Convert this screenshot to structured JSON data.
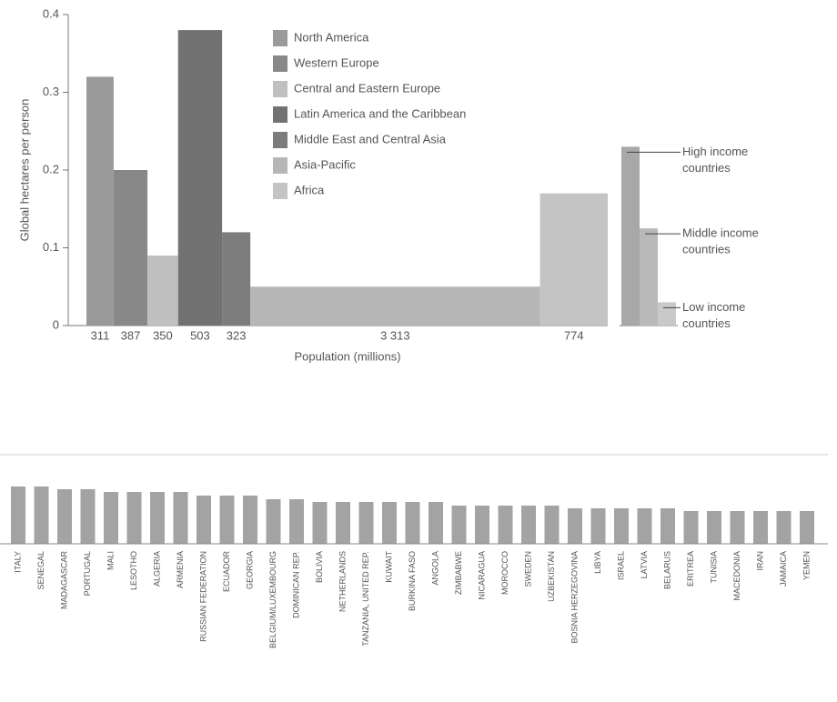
{
  "chart_data": [
    {
      "type": "bar",
      "ylabel": "Global hectares per person",
      "xlabel": "Population (millions)",
      "ylim": [
        0,
        0.4
      ],
      "yticks": [
        0,
        0.1,
        0.2,
        0.3,
        0.4
      ],
      "series": [
        {
          "name": "North America",
          "color": "#9a9a9a"
        },
        {
          "name": "Western Europe",
          "color": "#888888"
        },
        {
          "name": "Central and Eastern Europe",
          "color": "#c0c0c0"
        },
        {
          "name": "Latin America and the Caribbean",
          "color": "#727272"
        },
        {
          "name": "Middle East and Central Asia",
          "color": "#7c7c7c"
        },
        {
          "name": "Asia-Pacific",
          "color": "#b6b6b6"
        },
        {
          "name": "Africa",
          "color": "#c4c4c4"
        }
      ],
      "values": [
        0.32,
        0.2,
        0.09,
        0.38,
        0.12,
        0.05,
        0.17
      ],
      "widths": [
        311,
        387,
        350,
        503,
        323,
        3313,
        774
      ],
      "width_labels": [
        "311",
        "387",
        "350",
        "503",
        "323",
        "3 313",
        "774"
      ],
      "income_groups": {
        "labels": [
          [
            "High income",
            "countries"
          ],
          [
            "Middle income",
            "countries"
          ],
          [
            "Low income",
            "countries"
          ]
        ],
        "values": [
          0.23,
          0.125,
          0.03
        ],
        "colors": [
          "#a8a8a8",
          "#b9b9b9",
          "#c9c9c9"
        ]
      }
    },
    {
      "type": "bar",
      "ylim": [
        0,
        70
      ],
      "color": "#a3a3a3",
      "categories": [
        "ITALY",
        "SENEGAL",
        "MADAGASCAR",
        "PORTUGAL",
        "MALI",
        "LESOTHO",
        "ALGERIA",
        "ARMENIA",
        "RUSSIAN FEDERATION",
        "ECUADOR",
        "GEORGIA",
        "BELGIUM/LUXEMBOURG",
        "DOMINICAN REP.",
        "BOLIVIA",
        "NETHERLANDS",
        "TANZANIA, UNITED REP.",
        "KUWAIT",
        "BURKINA FASO",
        "ANGOLA",
        "ZIMBABWE",
        "NICARAGUA",
        "MOROCCO",
        "SWEDEN",
        "UZBEKISTAN",
        "BOSNIA HERZEGOVINA",
        "LIBYA",
        "ISRAEL",
        "LATVIA",
        "BELARUS",
        "ERITREA",
        "TUNISIA",
        "MACEDONIA",
        "IRAN",
        "JAMAICA",
        "YEMEN"
      ],
      "values": [
        63,
        63,
        60,
        60,
        57,
        57,
        57,
        57,
        53,
        53,
        53,
        49,
        49,
        46,
        46,
        46,
        46,
        46,
        46,
        42,
        42,
        42,
        42,
        42,
        39,
        39,
        39,
        39,
        39,
        36,
        36,
        36,
        36,
        36,
        36
      ]
    }
  ]
}
